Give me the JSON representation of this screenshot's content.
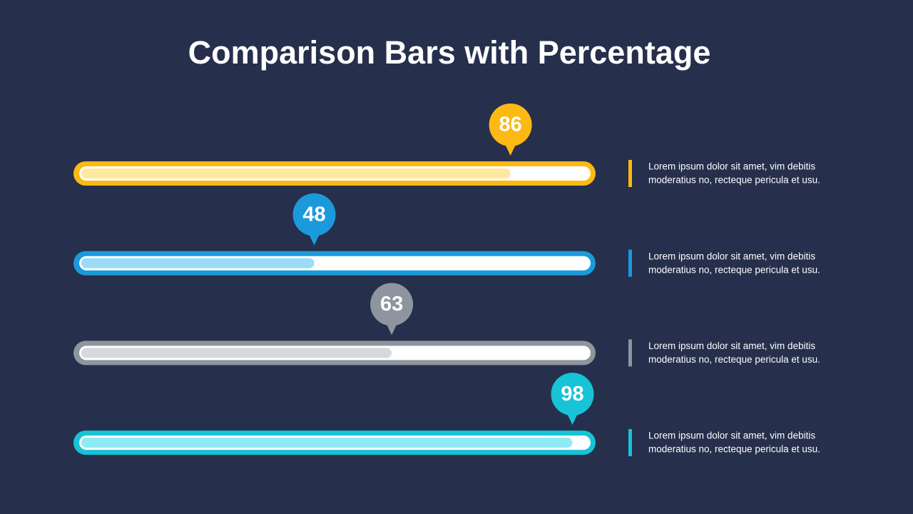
{
  "chart_data": {
    "type": "bar",
    "orientation": "horizontal",
    "title": "Comparison Bars with Percentage",
    "values": [
      86,
      48,
      63,
      98
    ],
    "colors": [
      "#FDB913",
      "#1B9ADB",
      "#8E959E",
      "#17C3D6"
    ],
    "fill_colors": [
      "#FFE9A0",
      "#9ADCF8",
      "#D5D8DC",
      "#8FEAF3"
    ],
    "xlim": [
      0,
      100
    ],
    "descriptions": [
      [
        "Lorem ipsum dolor sit amet, vim debitis",
        "moderatius no, recteque pericula et usu."
      ],
      [
        "Lorem ipsum dolor sit amet, vim debitis",
        "moderatius no, recteque pericula et usu."
      ],
      [
        "Lorem ipsum dolor sit amet, vim debitis",
        "moderatius no, recteque pericula et usu."
      ],
      [
        "Lorem ipsum dolor sit amet, vim debitis",
        "moderatius no, recteque pericula et usu."
      ]
    ]
  }
}
